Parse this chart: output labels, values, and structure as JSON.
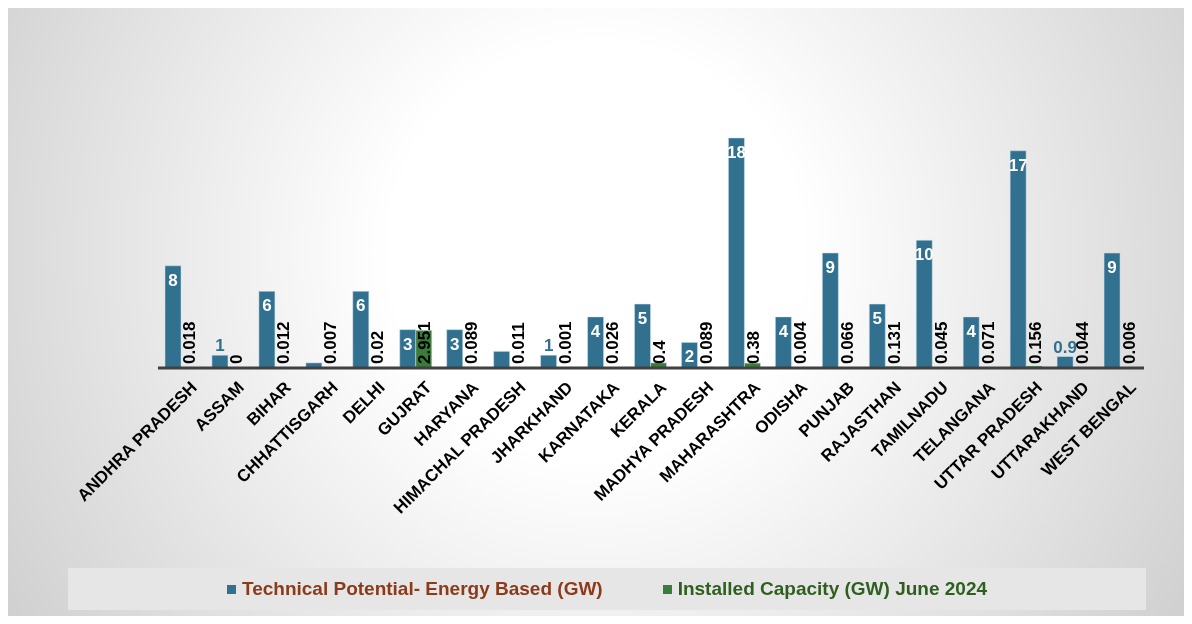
{
  "chart_data": {
    "type": "bar",
    "categories": [
      "ANDHRA PRADESH",
      "ASSAM",
      "BIHAR",
      "CHHATTISGARH",
      "DELHI",
      "GUJRAT",
      "HARYANA",
      "HIMACHAL PRADESH",
      "JHARKHAND",
      "KARNATAKA",
      "KERALA",
      "MADHYA PRADESH",
      "MAHARASHTRA",
      "ODISHA",
      "PUNJAB",
      "RAJASTHAN",
      "TAMILNADU",
      "TELANGANA",
      "UTTAR PRADESH",
      "UTTARAKHAND",
      "WEST BENGAL"
    ],
    "series": [
      {
        "name": "Technical Potential- Energy Based (GW)",
        "color": "#31708f",
        "values": [
          8,
          1,
          6,
          0.4,
          6,
          3,
          3,
          1.3,
          1,
          4,
          5,
          2,
          18,
          4,
          9,
          5,
          10,
          4,
          17,
          0.9,
          9
        ],
        "value_labels": [
          "8",
          "1",
          "6",
          null,
          "6",
          "3",
          "3",
          null,
          "1",
          "4",
          "5",
          "2",
          "18",
          "4",
          "9",
          "5",
          "10",
          "4",
          "17",
          "0.9",
          "9"
        ]
      },
      {
        "name": "Installed Capacity (GW) June 2024",
        "color": "#3a7d3a",
        "values": [
          0.018,
          0,
          0.012,
          0.007,
          0.02,
          2.951,
          0.089,
          0.011,
          0.001,
          0.026,
          0.4,
          0.089,
          0.38,
          0.004,
          0.066,
          0.131,
          0.045,
          0.071,
          0.156,
          0.044,
          0.006
        ],
        "value_labels": [
          "0.018",
          "0",
          "0.012",
          "0.007",
          "0.02",
          "2.951",
          "0.089",
          "0.011",
          "0.001",
          "0.026",
          "0.4",
          "0.089",
          "0.38",
          "0.004",
          "0.066",
          "0.131",
          "0.045",
          "0.071",
          "0.156",
          "0.044",
          "0.006"
        ]
      }
    ],
    "grid": false,
    "legend": "bottom"
  }
}
